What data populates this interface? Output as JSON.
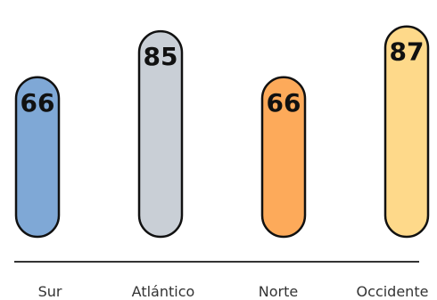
{
  "chart_data": {
    "type": "bar",
    "categories": [
      "Sur",
      "Atlántico",
      "Norte",
      "Occidente"
    ],
    "values": [
      66,
      85,
      66,
      87
    ],
    "colors": [
      "#7fa8d6",
      "#c9cfd6",
      "#fdaa5a",
      "#fed98a"
    ],
    "ylim": [
      0,
      95
    ],
    "grid": false,
    "xlabel": "",
    "ylabel": ""
  }
}
